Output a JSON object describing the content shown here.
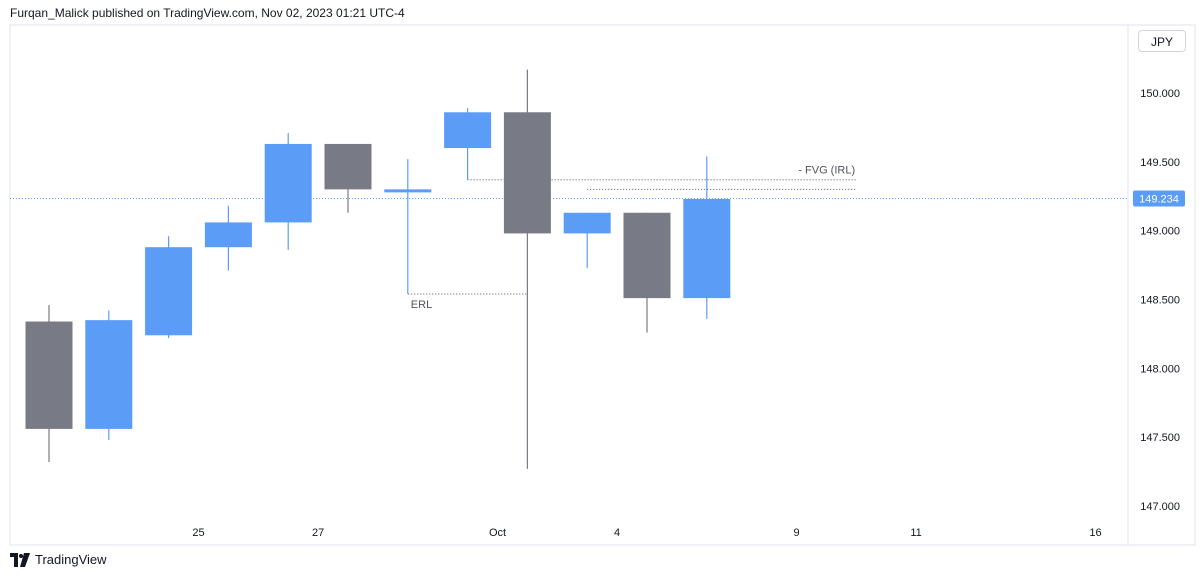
{
  "header": {
    "publisher": "Furqan_Malick published on TradingView.com, Nov 02, 2023 01:21 UTC-4"
  },
  "currency": "JPY",
  "footer": {
    "brand": "TradingView"
  },
  "colors": {
    "up": "#5b9cf6",
    "down": "#787b86",
    "grid_border": "#e0e3eb",
    "text": "#131722"
  },
  "chart_data": {
    "type": "candlestick",
    "y_ticks": [
      147.0,
      147.5,
      148.0,
      148.5,
      149.0,
      149.5,
      150.0
    ],
    "x_ticks": [
      {
        "label": "25",
        "at": 2.5
      },
      {
        "label": "27",
        "at": 4.5
      },
      {
        "label": "Oct",
        "at": 7.5
      },
      {
        "label": "4",
        "at": 9.5
      },
      {
        "label": "9",
        "at": 12.5
      },
      {
        "label": "11",
        "at": 14.5
      },
      {
        "label": "16",
        "at": 17.5
      }
    ],
    "candles": [
      {
        "open": 148.34,
        "high": 148.46,
        "low": 147.32,
        "close": 147.56
      },
      {
        "open": 147.56,
        "high": 148.42,
        "low": 147.48,
        "close": 148.35
      },
      {
        "open": 148.24,
        "high": 148.96,
        "low": 148.22,
        "close": 148.88
      },
      {
        "open": 148.88,
        "high": 149.18,
        "low": 148.71,
        "close": 149.06
      },
      {
        "open": 149.06,
        "high": 149.71,
        "low": 148.86,
        "close": 149.63
      },
      {
        "open": 149.63,
        "high": 149.63,
        "low": 149.13,
        "close": 149.3
      },
      {
        "open": 149.29,
        "high": 149.52,
        "low": 148.54,
        "close": 149.3
      },
      {
        "open": 149.6,
        "high": 149.89,
        "low": 149.37,
        "close": 149.86
      },
      {
        "open": 149.86,
        "high": 150.17,
        "low": 147.27,
        "close": 148.98
      },
      {
        "open": 148.98,
        "high": 149.13,
        "low": 148.73,
        "close": 149.13
      },
      {
        "open": 149.13,
        "high": 149.13,
        "low": 148.26,
        "close": 148.51
      },
      {
        "open": 148.51,
        "high": 149.54,
        "low": 148.36,
        "close": 149.23
      }
    ],
    "current_price": {
      "value": 149.234,
      "label": "149.234"
    },
    "annotations": [
      {
        "label": "ERL",
        "price": 148.54,
        "from": 6,
        "to": 8
      },
      {
        "label": "- FVG (IRL)",
        "upper": 149.37,
        "lower": 149.3,
        "from": 7.5,
        "to": 13.5
      }
    ]
  }
}
